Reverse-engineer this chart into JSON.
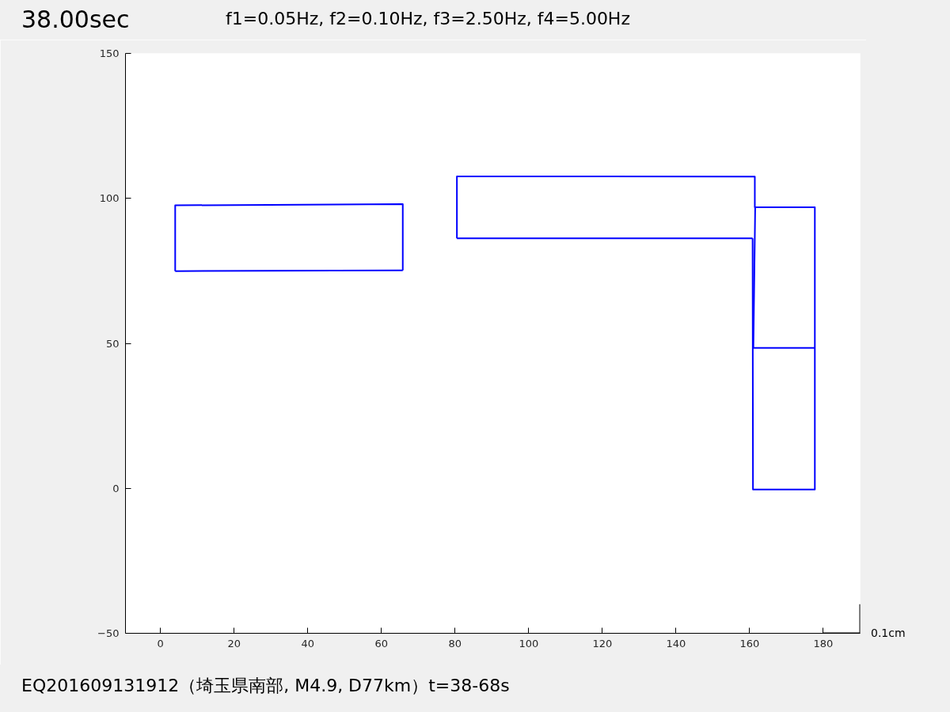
{
  "chart_data": {
    "type": "line",
    "title": "38.00sec",
    "subtitle": "f1=0.05Hz, f2=0.10Hz, f3=2.50Hz, f4=5.00Hz",
    "annotations": [
      "EQ201609131912（埼玉県南部, M4.9, D77km）t=38-68s",
      {
        "text": "0.1cm",
        "x": 190,
        "y": -50
      }
    ],
    "xlim": [
      -9.5,
      190
    ],
    "ylim": [
      -50,
      150
    ],
    "xticks": [
      0,
      20,
      40,
      60,
      80,
      100,
      120,
      140,
      160,
      180
    ],
    "yticks": [
      -50,
      0,
      50,
      100,
      150
    ],
    "series": [
      {
        "color": "#0000ff",
        "x": [
          4.0,
          4.0,
          65.8,
          65.8
        ],
        "values": [
          74.9,
          97.6,
          98.0,
          75.2
        ]
      },
      {
        "color": "#0000ff",
        "x": [
          4.0,
          65.8
        ],
        "values": [
          74.9,
          75.2
        ]
      },
      {
        "color": "#0000ff",
        "x": [
          80.5,
          80.5,
          161.4,
          161.4,
          177.7,
          177.7,
          160.9,
          160.8
        ],
        "values": [
          86.2,
          107.6,
          107.5,
          96.9,
          96.9,
          -0.4,
          -0.4,
          86.2
        ]
      },
      {
        "color": "#0000ff",
        "x": [
          160.8,
          80.5
        ],
        "values": [
          86.2,
          86.2
        ]
      },
      {
        "color": "#0000ff",
        "x": [
          161.5,
          161.0,
          177.7
        ],
        "values": [
          96.9,
          48.4,
          48.4
        ]
      },
      {
        "color": "#000000",
        "x": [
          180,
          190,
          190
        ],
        "values": [
          -50,
          -50,
          -40
        ]
      }
    ]
  }
}
